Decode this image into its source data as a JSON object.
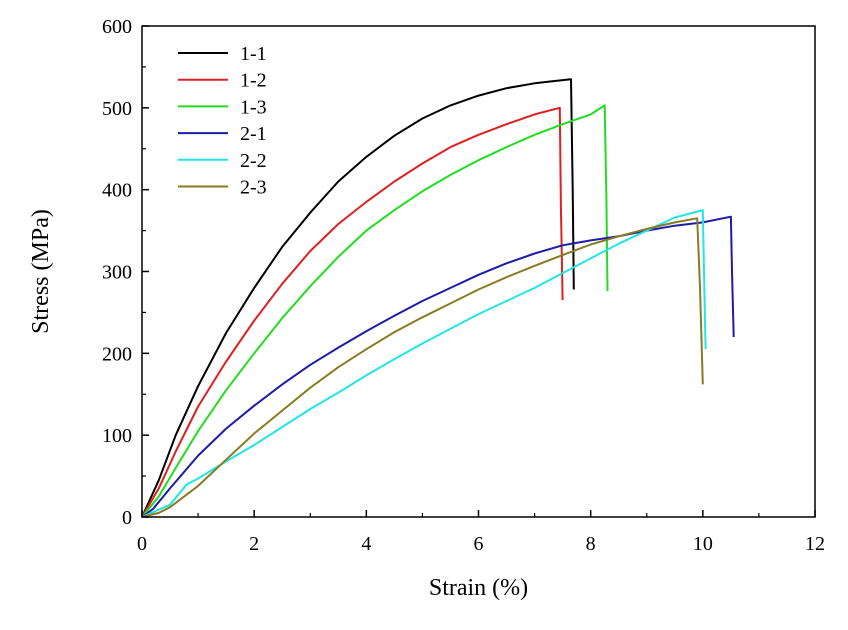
{
  "chart_data": {
    "type": "line",
    "title": "",
    "xlabel": "Strain (%)",
    "ylabel": "Stress (MPa)",
    "xlim": [
      0,
      12
    ],
    "ylim": [
      0,
      600
    ],
    "xticks": [
      0,
      2,
      4,
      6,
      8,
      10,
      12
    ],
    "yticks": [
      0,
      100,
      200,
      300,
      400,
      500,
      600
    ],
    "xtick_labels": [
      "0",
      "2",
      "4",
      "6",
      "8",
      "10",
      "12"
    ],
    "ytick_labels": [
      "0",
      "100",
      "200",
      "300",
      "400",
      "500",
      "600"
    ],
    "grid": false,
    "legend_position": "top-left",
    "series": [
      {
        "name": "1-1",
        "color": "#000000",
        "x": [
          0,
          0.3,
          0.6,
          1.0,
          1.5,
          2.0,
          2.5,
          3.0,
          3.5,
          4.0,
          4.5,
          5.0,
          5.5,
          6.0,
          6.5,
          7.0,
          7.4,
          7.65,
          7.68,
          7.7
        ],
        "y": [
          0,
          45,
          100,
          160,
          225,
          280,
          330,
          372,
          410,
          440,
          466,
          487,
          503,
          515,
          524,
          530,
          533,
          535,
          400,
          278
        ]
      },
      {
        "name": "1-2",
        "color": "#e02020",
        "x": [
          0,
          0.3,
          0.6,
          1.0,
          1.5,
          2.0,
          2.5,
          3.0,
          3.5,
          4.0,
          4.5,
          5.0,
          5.5,
          6.0,
          6.5,
          7.0,
          7.45,
          7.47,
          7.5
        ],
        "y": [
          0,
          35,
          80,
          135,
          190,
          240,
          285,
          325,
          358,
          385,
          410,
          432,
          452,
          467,
          480,
          492,
          500,
          380,
          265
        ]
      },
      {
        "name": "1-3",
        "color": "#20dd20",
        "x": [
          0,
          0.3,
          0.6,
          1.0,
          1.5,
          2.0,
          2.5,
          3.0,
          3.5,
          4.0,
          4.5,
          5.0,
          5.5,
          6.0,
          6.5,
          7.0,
          7.5,
          8.0,
          8.25,
          8.28,
          8.3
        ],
        "y": [
          0,
          25,
          60,
          105,
          155,
          200,
          243,
          282,
          318,
          350,
          375,
          398,
          418,
          436,
          452,
          467,
          480,
          492,
          503,
          390,
          276
        ]
      },
      {
        "name": "2-1",
        "color": "#1c1ca8",
        "x": [
          0,
          0.2,
          0.5,
          1.0,
          1.5,
          2.0,
          2.5,
          3.0,
          3.5,
          4.0,
          4.5,
          5.0,
          5.5,
          6.0,
          6.5,
          7.0,
          7.5,
          8.0,
          8.5,
          9.0,
          9.5,
          10.0,
          10.5,
          10.52,
          10.55
        ],
        "y": [
          0,
          10,
          35,
          75,
          108,
          136,
          162,
          186,
          207,
          227,
          246,
          264,
          280,
          296,
          310,
          322,
          332,
          338,
          343,
          350,
          356,
          360,
          367,
          300,
          220
        ]
      },
      {
        "name": "2-2",
        "color": "#22e5e8",
        "x": [
          0,
          0.5,
          0.8,
          1.0,
          1.5,
          2.0,
          2.5,
          3.0,
          3.5,
          4.0,
          4.5,
          5.0,
          5.5,
          6.0,
          6.5,
          7.0,
          7.5,
          8.0,
          8.5,
          9.0,
          9.5,
          10.0,
          10.02,
          10.05
        ],
        "y": [
          0,
          15,
          40,
          47,
          68,
          88,
          110,
          132,
          152,
          173,
          193,
          212,
          230,
          248,
          264,
          280,
          298,
          316,
          334,
          350,
          366,
          375,
          300,
          205
        ]
      },
      {
        "name": "2-3",
        "color": "#8a7a22",
        "x": [
          0,
          0.3,
          0.5,
          1.0,
          1.5,
          2.0,
          2.5,
          3.0,
          3.5,
          4.0,
          4.5,
          5.0,
          5.5,
          6.0,
          6.5,
          7.0,
          7.5,
          8.0,
          8.5,
          9.0,
          9.5,
          9.9,
          9.95,
          10.0
        ],
        "y": [
          0,
          5,
          12,
          38,
          70,
          102,
          130,
          158,
          183,
          205,
          226,
          244,
          261,
          278,
          293,
          307,
          320,
          333,
          343,
          352,
          360,
          365,
          280,
          162
        ]
      }
    ]
  }
}
